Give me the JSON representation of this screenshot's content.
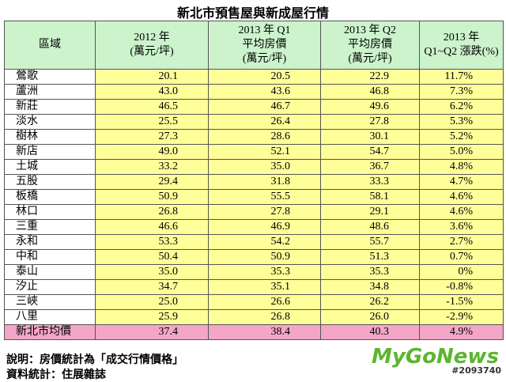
{
  "title": "新北市預售屋與新成屋行情",
  "table": {
    "headers": [
      [
        "區域"
      ],
      [
        "2012 年",
        "(萬元/坪)"
      ],
      [
        "2013 年 Q1",
        "平均房價",
        "(萬元/坪)"
      ],
      [
        "2013 年 Q2",
        "平均房價",
        "(萬元/坪)"
      ],
      [
        "2013 年",
        "Q1~Q2 漲跌(%)"
      ]
    ],
    "rows": [
      [
        "鶯歌",
        "20.1",
        "20.5",
        "22.9",
        "11.7%"
      ],
      [
        "蘆洲",
        "43.0",
        "43.6",
        "46.8",
        "7.3%"
      ],
      [
        "新莊",
        "46.5",
        "46.7",
        "49.6",
        "6.2%"
      ],
      [
        "淡水",
        "25.5",
        "26.4",
        "27.8",
        "5.3%"
      ],
      [
        "樹林",
        "27.3",
        "28.6",
        "30.1",
        "5.2%"
      ],
      [
        "新店",
        "49.0",
        "52.1",
        "54.7",
        "5.0%"
      ],
      [
        "土城",
        "33.2",
        "35.0",
        "36.7",
        "4.8%"
      ],
      [
        "五股",
        "29.4",
        "31.8",
        "33.3",
        "4.7%"
      ],
      [
        "板橋",
        "50.9",
        "55.5",
        "58.1",
        "4.6%"
      ],
      [
        "林口",
        "26.8",
        "27.8",
        "29.1",
        "4.6%"
      ],
      [
        "三重",
        "46.6",
        "46.9",
        "48.6",
        "3.6%"
      ],
      [
        "永和",
        "53.3",
        "54.2",
        "55.7",
        "2.7%"
      ],
      [
        "中和",
        "50.4",
        "50.9",
        "51.3",
        "0.7%"
      ],
      [
        "泰山",
        "35.0",
        "35.3",
        "35.3",
        "0%"
      ],
      [
        "汐止",
        "34.7",
        "35.1",
        "34.8",
        "-0.8%"
      ],
      [
        "三峽",
        "25.0",
        "26.6",
        "26.2",
        "-1.5%"
      ],
      [
        "八里",
        "25.9",
        "26.8",
        "26.0",
        "-2.9%"
      ],
      [
        "新北市均價",
        "37.4",
        "38.4",
        "40.3",
        "4.9%"
      ]
    ]
  },
  "footer": [
    "說明：房價統計為「成交行情價格」",
    "資料統計：住展雜誌"
  ],
  "watermark": {
    "logo": "MyGoNews",
    "id": "#2093740"
  }
}
